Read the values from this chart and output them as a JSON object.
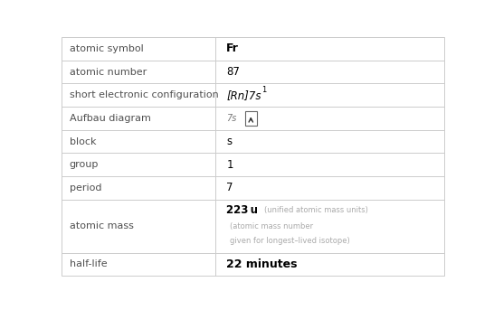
{
  "rows": [
    {
      "label": "atomic symbol",
      "value": "Fr",
      "type": "plain_bold"
    },
    {
      "label": "atomic number",
      "value": "87",
      "type": "plain"
    },
    {
      "label": "short electronic configuration",
      "type": "elec_config"
    },
    {
      "label": "Aufbau diagram",
      "type": "aufbau"
    },
    {
      "label": "block",
      "value": "s",
      "type": "plain"
    },
    {
      "label": "group",
      "value": "1",
      "type": "plain"
    },
    {
      "label": "period",
      "value": "7",
      "type": "plain"
    },
    {
      "label": "atomic mass",
      "type": "atomic_mass"
    },
    {
      "label": "half-life",
      "value": "22 minutes",
      "type": "halflife"
    }
  ],
  "row_heights": [
    1,
    1,
    1,
    1,
    1,
    1,
    1,
    2.3,
    1
  ],
  "col_split": 0.4,
  "background": "#ffffff",
  "border_color": "#cccccc",
  "label_color": "#505050",
  "value_color": "#000000",
  "annotation_color": "#aaaaaa",
  "label_fs": 8.0,
  "value_fs": 8.5
}
